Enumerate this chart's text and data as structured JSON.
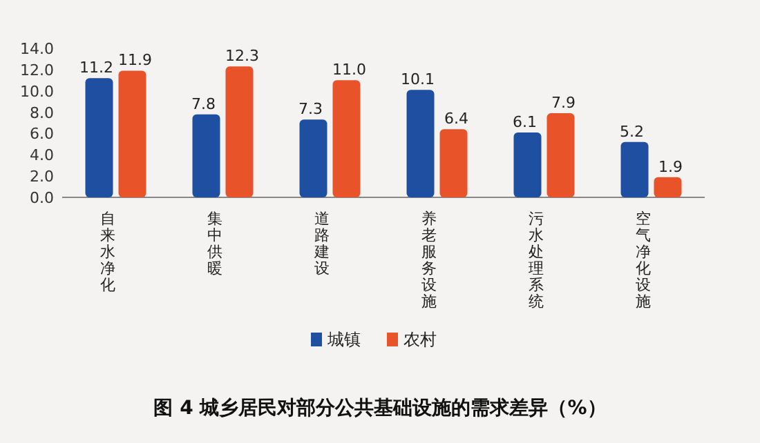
{
  "chart_data": {
    "type": "bar",
    "title": "图 4 城乡居民对部分公共基础设施的需求差异（%）",
    "categories": [
      "自来水净化",
      "集中供暖",
      "道路建设",
      "养老服务设施",
      "污水处理系统",
      "空气净化设施"
    ],
    "series": [
      {
        "name": "城镇",
        "color": "#1f4fa0",
        "values": [
          11.2,
          7.8,
          7.3,
          10.1,
          6.1,
          5.2
        ],
        "value_labels": [
          "11.2",
          "7.8",
          "7.3",
          "10.1",
          "6.1",
          "5.2"
        ]
      },
      {
        "name": "农村",
        "color": "#e8532a",
        "values": [
          11.9,
          12.3,
          11.0,
          6.4,
          7.9,
          1.9
        ],
        "value_labels": [
          "11.9",
          "12.3",
          "11.0",
          "6.4",
          "7.9",
          "1.9"
        ]
      }
    ],
    "ylim": [
      0,
      14
    ],
    "yticks": [
      {
        "value": 0,
        "label": "0.0"
      },
      {
        "value": 2,
        "label": "2.0"
      },
      {
        "value": 4,
        "label": "4.0"
      },
      {
        "value": 6,
        "label": "6.0"
      },
      {
        "value": 8,
        "label": "8.0"
      },
      {
        "value": 10,
        "label": "10.0"
      },
      {
        "value": 12,
        "label": "12.0"
      },
      {
        "value": 14,
        "label": "14.0"
      }
    ],
    "legend": "bottom"
  }
}
